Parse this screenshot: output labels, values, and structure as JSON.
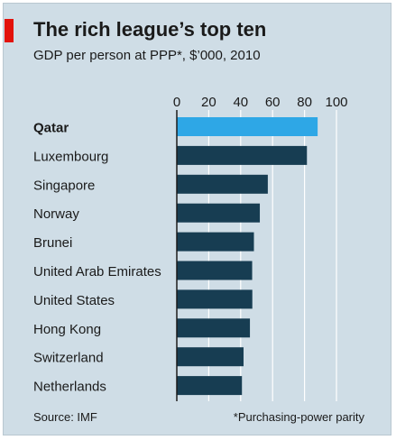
{
  "colors": {
    "panel": "#cfdde6",
    "accent_tab": "#e3120b",
    "bar_default": "#173d52",
    "bar_highlight": "#2ea7e6",
    "text": "#1a1a1a"
  },
  "header": {
    "title": "The rich league’s top ten",
    "subtitle": "GDP per person at PPP*, $’000, 2010"
  },
  "footer": {
    "source": "Source: IMF",
    "footnote": "*Purchasing-power parity"
  },
  "chart_data": {
    "type": "bar",
    "orientation": "horizontal",
    "title": "The rich league’s top ten",
    "subtitle": "GDP per person at PPP*, $’000, 2010",
    "xlabel": "",
    "ylabel": "",
    "categories": [
      "Qatar",
      "Luxembourg",
      "Singapore",
      "Norway",
      "Brunei",
      "United Arab Emirates",
      "United States",
      "Hong Kong",
      "Switzerland",
      "Netherlands"
    ],
    "values": [
      88.2,
      81.5,
      57.0,
      52.0,
      48.3,
      47.2,
      47.3,
      45.8,
      41.8,
      40.8
    ],
    "highlight": "Qatar",
    "xlim": [
      0,
      100
    ],
    "xticks": [
      "0",
      "20",
      "40",
      "60",
      "80",
      "100"
    ],
    "xaxis_position": "top",
    "grid": true
  }
}
